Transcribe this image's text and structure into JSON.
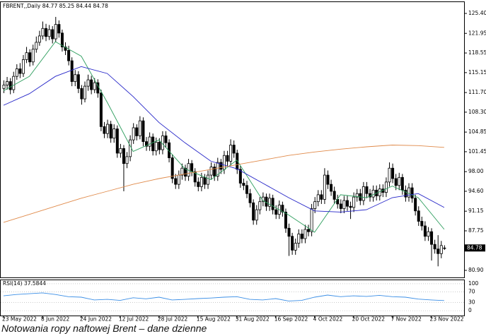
{
  "chart_data": {
    "type": "candlestick",
    "symbol": "FBRENT,,Daily",
    "categories": [
      "23 May 2022",
      null,
      null,
      null,
      null,
      null,
      null,
      null,
      null,
      null,
      null,
      null,
      "8 Jun 2022",
      null,
      null,
      null,
      null,
      null,
      null,
      null,
      null,
      null,
      null,
      null,
      "24 Jun 2022",
      null,
      null,
      null,
      null,
      null,
      null,
      null,
      null,
      null,
      null,
      null,
      "12 Jul 2022",
      null,
      null,
      null,
      null,
      null,
      null,
      null,
      null,
      null,
      null,
      null,
      "28 Jul 2022",
      null,
      null,
      null,
      null,
      null,
      null,
      null,
      null,
      null,
      null,
      null,
      "15 Aug 2022",
      null,
      null,
      null,
      null,
      null,
      null,
      null,
      null,
      null,
      null,
      null,
      "31 Aug 2022",
      null,
      null,
      null,
      null,
      null,
      null,
      null,
      null,
      null,
      null,
      null,
      "16 Sep 2022",
      null,
      null,
      null,
      null,
      null,
      null,
      null,
      null,
      null,
      null,
      null,
      "4 Oct 2022",
      null,
      null,
      null,
      null,
      null,
      null,
      null,
      null,
      null,
      null,
      null,
      "20 Oct 2022",
      null,
      null,
      null,
      null,
      null,
      null,
      null,
      null,
      null,
      null,
      null,
      "7 Nov 2022",
      null,
      null,
      null,
      null,
      null,
      null,
      null,
      null,
      null,
      null,
      null,
      "23 Nov 2022",
      null,
      null,
      null,
      null
    ],
    "open": [
      112.4,
      113.0,
      113.6,
      112.2,
      114.5,
      115.8,
      115.0,
      117.4,
      118.6,
      117.0,
      119.2,
      120.4,
      121.5,
      122.8,
      121.4,
      122.6,
      121.0,
      123.5,
      122.0,
      119.6,
      119.0,
      117.2,
      113.6,
      114.8,
      112.4,
      110.6,
      112.8,
      113.9,
      112.2,
      113.4,
      111.6,
      105.8,
      104.6,
      106.2,
      103.8,
      105.4,
      101.2,
      102.0,
      99.4,
      100.6,
      103.5,
      105.6,
      104.2,
      106.8,
      103.2,
      102.4,
      104.0,
      101.6,
      103.1,
      101.8,
      104.2,
      103.0,
      100.4,
      96.8,
      95.8,
      97.4,
      98.6,
      97.2,
      99.4,
      98.0,
      96.2,
      95.4,
      97.0,
      95.8,
      97.4,
      98.8,
      97.2,
      99.6,
      98.4,
      100.8,
      99.8,
      102.6,
      101.2,
      98.4,
      96.0,
      95.6,
      94.2,
      92.6,
      89.6,
      91.4,
      92.8,
      93.6,
      92.0,
      93.4,
      91.4,
      90.6,
      92.2,
      91.0,
      88.2,
      86.8,
      84.4,
      85.6,
      87.2,
      86.4,
      88.0,
      87.6,
      91.6,
      92.8,
      94.0,
      93.2,
      97.4,
      95.8,
      94.6,
      93.2,
      92.4,
      91.6,
      93.0,
      92.0,
      91.8,
      93.6,
      94.2,
      93.0,
      95.4,
      94.2,
      93.6,
      94.8,
      93.8,
      95.0,
      94.4,
      96.2,
      98.6,
      96.8,
      95.6,
      97.0,
      94.8,
      93.6,
      95.2,
      93.4,
      91.2,
      89.4,
      88.6,
      86.8,
      87.6,
      85.4,
      84.6,
      83.8,
      84.77
    ],
    "high": [
      113.8,
      114.4,
      114.2,
      115.3,
      116.6,
      116.8,
      118.2,
      119.6,
      119.2,
      120.0,
      121.4,
      122.4,
      124.0,
      123.6,
      123.4,
      123.2,
      124.8,
      124.2,
      122.6,
      120.4,
      119.8,
      117.8,
      115.6,
      115.4,
      113.0,
      113.6,
      114.8,
      114.6,
      114.2,
      114.0,
      112.2,
      106.6,
      107.0,
      106.8,
      106.2,
      106.0,
      102.8,
      102.6,
      101.4,
      104.3,
      106.4,
      106.2,
      107.6,
      107.4,
      104.0,
      104.8,
      104.6,
      103.9,
      103.8,
      105.0,
      105.0,
      103.6,
      101.0,
      97.6,
      98.2,
      99.4,
      99.2,
      100.2,
      100.0,
      98.6,
      97.0,
      97.8,
      97.6,
      98.2,
      99.6,
      99.4,
      100.4,
      100.2,
      101.6,
      101.6,
      103.6,
      103.4,
      101.8,
      99.0,
      96.8,
      96.4,
      95.0,
      93.2,
      92.2,
      93.6,
      94.4,
      94.2,
      94.2,
      94.0,
      92.2,
      93.0,
      92.8,
      91.6,
      89.0,
      87.4,
      86.4,
      88.0,
      88.0,
      88.8,
      88.8,
      92.4,
      93.6,
      94.8,
      94.8,
      98.6,
      98.2,
      96.6,
      95.4,
      94.0,
      93.2,
      93.8,
      93.8,
      92.8,
      94.4,
      95.0,
      95.0,
      96.2,
      96.2,
      95.0,
      95.6,
      95.6,
      95.8,
      95.8,
      97.0,
      99.6,
      99.4,
      97.6,
      97.8,
      97.6,
      95.6,
      96.0,
      96.0,
      94.0,
      92.0,
      90.2,
      89.4,
      88.4,
      88.2,
      86.2,
      87.0,
      86.0,
      85.25
    ],
    "low": [
      111.6,
      112.2,
      111.4,
      111.6,
      113.9,
      114.2,
      114.4,
      116.8,
      116.2,
      116.4,
      118.6,
      119.8,
      120.9,
      120.6,
      120.8,
      120.2,
      120.4,
      121.2,
      118.8,
      118.2,
      116.4,
      112.8,
      112.8,
      111.6,
      109.6,
      110.0,
      112.0,
      111.4,
      111.6,
      110.8,
      105.0,
      103.8,
      103.8,
      103.0,
      103.0,
      100.4,
      100.4,
      94.6,
      98.6,
      99.8,
      102.8,
      103.4,
      103.6,
      102.4,
      101.6,
      101.6,
      100.8,
      100.8,
      101.0,
      101.0,
      102.2,
      99.6,
      96.0,
      95.0,
      95.0,
      96.6,
      96.4,
      96.4,
      97.2,
      95.4,
      94.6,
      94.6,
      95.0,
      95.0,
      96.6,
      96.4,
      96.4,
      97.6,
      97.6,
      99.0,
      99.0,
      100.4,
      97.6,
      95.2,
      94.8,
      93.4,
      91.8,
      88.8,
      88.8,
      90.6,
      92.0,
      91.2,
      91.2,
      90.6,
      89.8,
      89.8,
      90.2,
      87.4,
      83.4,
      83.6,
      83.6,
      84.8,
      85.6,
      85.6,
      86.8,
      86.8,
      90.8,
      92.0,
      92.4,
      92.4,
      95.0,
      93.8,
      92.4,
      91.6,
      90.8,
      90.8,
      91.2,
      89.8,
      91.0,
      92.8,
      92.2,
      92.2,
      93.4,
      92.8,
      92.8,
      93.0,
      93.0,
      93.6,
      93.6,
      95.4,
      96.0,
      94.8,
      94.8,
      94.0,
      92.8,
      92.8,
      92.6,
      90.4,
      88.6,
      87.8,
      86.0,
      86.0,
      82.6,
      83.8,
      81.6,
      83.0,
      84.44
    ],
    "close": [
      113.0,
      113.6,
      112.2,
      114.5,
      115.8,
      115.0,
      117.4,
      118.6,
      117.0,
      119.2,
      120.4,
      121.5,
      122.8,
      121.4,
      122.6,
      121.0,
      123.5,
      122.0,
      119.6,
      119.0,
      117.2,
      113.6,
      114.8,
      112.4,
      110.6,
      112.8,
      113.9,
      112.2,
      113.4,
      111.6,
      105.8,
      104.6,
      106.2,
      103.8,
      105.4,
      101.2,
      102.0,
      99.4,
      100.6,
      103.5,
      105.6,
      104.2,
      106.8,
      103.2,
      102.4,
      104.0,
      101.6,
      103.1,
      101.8,
      104.2,
      103.0,
      100.4,
      96.8,
      95.8,
      97.4,
      98.6,
      97.2,
      99.4,
      98.0,
      96.2,
      95.4,
      97.0,
      95.8,
      97.4,
      98.8,
      97.2,
      99.6,
      98.4,
      100.8,
      99.8,
      102.6,
      101.2,
      98.4,
      96.0,
      95.6,
      94.2,
      92.6,
      89.6,
      91.4,
      92.8,
      93.6,
      92.0,
      93.4,
      91.4,
      90.6,
      92.2,
      91.0,
      88.2,
      86.8,
      84.4,
      85.6,
      87.2,
      86.4,
      88.0,
      87.6,
      91.6,
      92.8,
      94.0,
      93.2,
      97.4,
      95.8,
      94.6,
      93.2,
      92.4,
      91.6,
      93.0,
      92.0,
      91.8,
      93.6,
      94.2,
      93.0,
      95.4,
      94.2,
      93.6,
      94.8,
      93.8,
      95.0,
      94.4,
      96.2,
      98.6,
      96.8,
      95.6,
      97.0,
      94.8,
      93.6,
      95.2,
      93.4,
      91.2,
      89.4,
      88.6,
      86.8,
      87.6,
      85.4,
      84.6,
      83.8,
      85.2,
      84.78
    ],
    "ylim": [
      79.68,
      127.36
    ],
    "yticks": [
      {
        "value": 125.4,
        "label": "125.40"
      },
      121.95,
      118.55,
      115.15,
      {
        "value": 111.7,
        "label": "111.70"
      },
      {
        "value": 108.3,
        "label": "108.30"
      },
      104.85,
      101.45,
      {
        "value": 98,
        "label": "98.00"
      },
      {
        "value": 94.6,
        "label": "94.60"
      },
      91.15,
      87.75,
      {
        "value": 80.9,
        "label": "80.90"
      }
    ],
    "moving_averages": [
      {
        "color": "#2e9e5e",
        "x": [
          0,
          8,
          16,
          24,
          32,
          40,
          48,
          56,
          64,
          72,
          80,
          88,
          96,
          104,
          112,
          120,
          128,
          136
        ],
        "values": [
          112.0,
          114.5,
          120.5,
          118.0,
          110.0,
          101.5,
          103.5,
          98.5,
          96.6,
          100.0,
          93.0,
          90.5,
          87.5,
          94.0,
          93.5,
          95.5,
          93.5,
          88.0
        ]
      },
      {
        "color": "#2424c8",
        "x": [
          0,
          8,
          16,
          24,
          32,
          40,
          48,
          56,
          64,
          72,
          80,
          88,
          96,
          104,
          112,
          120,
          128,
          136
        ],
        "values": [
          109.5,
          111.5,
          114.5,
          116.2,
          115.0,
          111.0,
          106.5,
          103.0,
          99.8,
          98.5,
          96.0,
          93.5,
          91.2,
          91.0,
          91.4,
          93.5,
          94.2,
          91.8
        ]
      },
      {
        "color": "#e08a4a",
        "x": [
          0,
          8,
          16,
          24,
          32,
          40,
          48,
          56,
          64,
          72,
          80,
          88,
          96,
          104,
          112,
          120,
          128,
          136
        ],
        "values": [
          89.2,
          90.6,
          92.0,
          93.4,
          94.6,
          95.8,
          96.8,
          97.6,
          98.4,
          99.2,
          100.0,
          100.8,
          101.4,
          101.9,
          102.3,
          102.6,
          102.5,
          102.2
        ]
      }
    ],
    "rsi": {
      "label": "RSI(14)",
      "color": "#3a8ee6",
      "x": [
        0,
        4,
        8,
        12,
        16,
        20,
        24,
        28,
        32,
        36,
        40,
        44,
        48,
        52,
        56,
        60,
        64,
        68,
        72,
        76,
        80,
        84,
        88,
        92,
        96,
        100,
        104,
        108,
        112,
        116,
        120,
        124,
        128,
        132,
        136
      ],
      "values": [
        55,
        60,
        63,
        66,
        60,
        52,
        50,
        40,
        42,
        38,
        48,
        44,
        50,
        40,
        42,
        45,
        47,
        50,
        52,
        42,
        40,
        45,
        36,
        38,
        50,
        58,
        52,
        55,
        53,
        57,
        52,
        50,
        43,
        40,
        37.5844
      ],
      "ylim": [
        -18,
        113
      ],
      "yticks": [
        0,
        30,
        70,
        100
      ]
    }
  },
  "caption": "Notowania ropy naftowej Brent – dane dzienne"
}
